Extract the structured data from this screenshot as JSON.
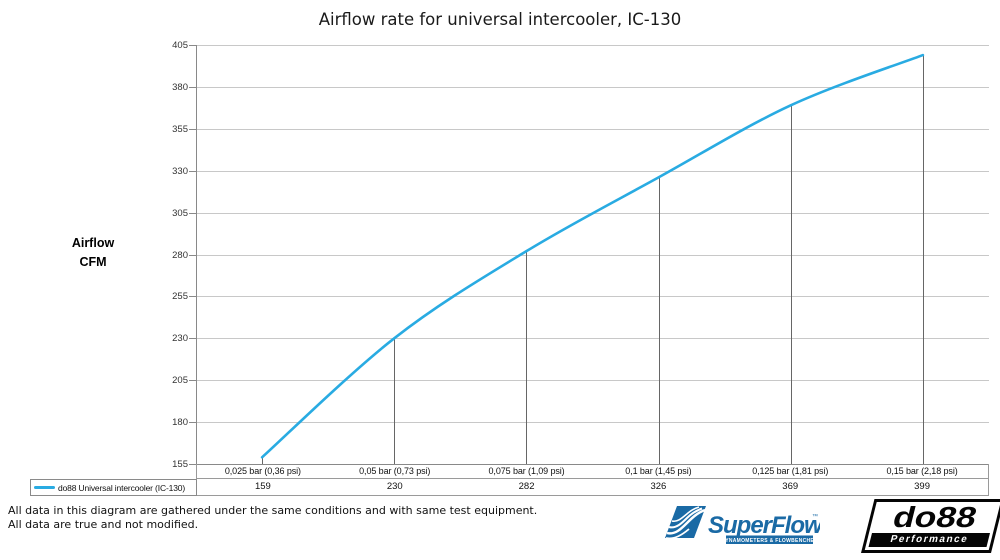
{
  "chart_data": {
    "type": "line",
    "title": "Airflow rate for universal intercooler, IC-130",
    "ylabel_lines": [
      "Airflow",
      "CFM"
    ],
    "categories": [
      "0,025 bar (0,36 psi)",
      "0,05 bar (0,73 psi)",
      "0,075 bar (1,09 psi)",
      "0,1 bar (1,45 psi)",
      "0,125 bar (1,81 psi)",
      "0,15 bar (2,18 psi)"
    ],
    "series": [
      {
        "name": "do88 Universal intercooler (IC-130)",
        "color": "#29ABE2",
        "values": [
          159,
          230,
          282,
          326,
          369,
          399
        ]
      }
    ],
    "y_ticks": [
      405,
      380,
      355,
      330,
      305,
      280,
      255,
      230,
      205,
      180,
      155
    ],
    "ylim": [
      155,
      405
    ],
    "grid": true,
    "drop_lines": true,
    "legend_position": "bottom-left"
  },
  "legend": {
    "label": "do88 Universal intercooler (IC-130)",
    "swatch_color": "#29ABE2"
  },
  "footer": {
    "line1": "All data in this diagram are gathered under the same conditions and with same test equipment.",
    "line2": "All data are true and not modified."
  },
  "logos": {
    "superflow": {
      "name": "SuperFlow",
      "trademark": "™",
      "tagline": "DYNAMOMETERS & FLOWBENCHES",
      "color": "#1A6AA5"
    },
    "do88": {
      "name": "do88",
      "tagline": "Performance"
    }
  },
  "colors": {
    "curve": "#29ABE2",
    "grid": "#C8C8C8",
    "axis": "#898989",
    "drop_line": "#666666",
    "table_border": "#9a9a9a"
  }
}
